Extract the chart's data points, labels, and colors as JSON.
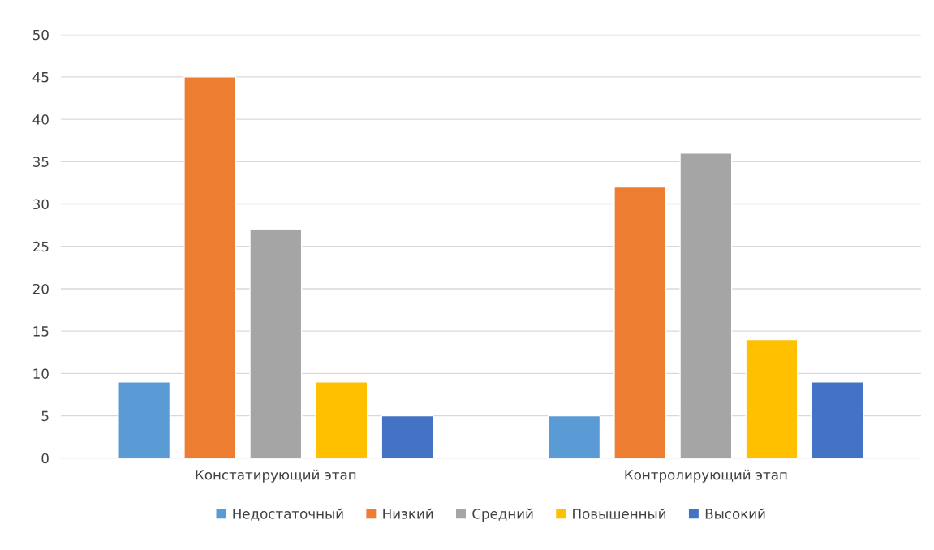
{
  "chart_data": {
    "type": "bar",
    "categories": [
      "Констатирующий этап",
      "Контролирующий этап"
    ],
    "series": [
      {
        "name": "Недостаточный",
        "color": "#5b9bd5",
        "values": [
          9,
          5
        ]
      },
      {
        "name": "Низкий",
        "color": "#ed7d31",
        "values": [
          45,
          32
        ]
      },
      {
        "name": "Средний",
        "color": "#a5a5a5",
        "values": [
          27,
          36
        ]
      },
      {
        "name": "Повышенный",
        "color": "#ffc000",
        "values": [
          9,
          14
        ]
      },
      {
        "name": "Высокий",
        "color": "#4472c4",
        "values": [
          5,
          9
        ]
      }
    ],
    "ylim": [
      0,
      50
    ],
    "yticks": [
      0,
      5,
      10,
      15,
      20,
      25,
      30,
      35,
      40,
      45,
      50
    ],
    "grid": "y",
    "legend": "bottom"
  }
}
